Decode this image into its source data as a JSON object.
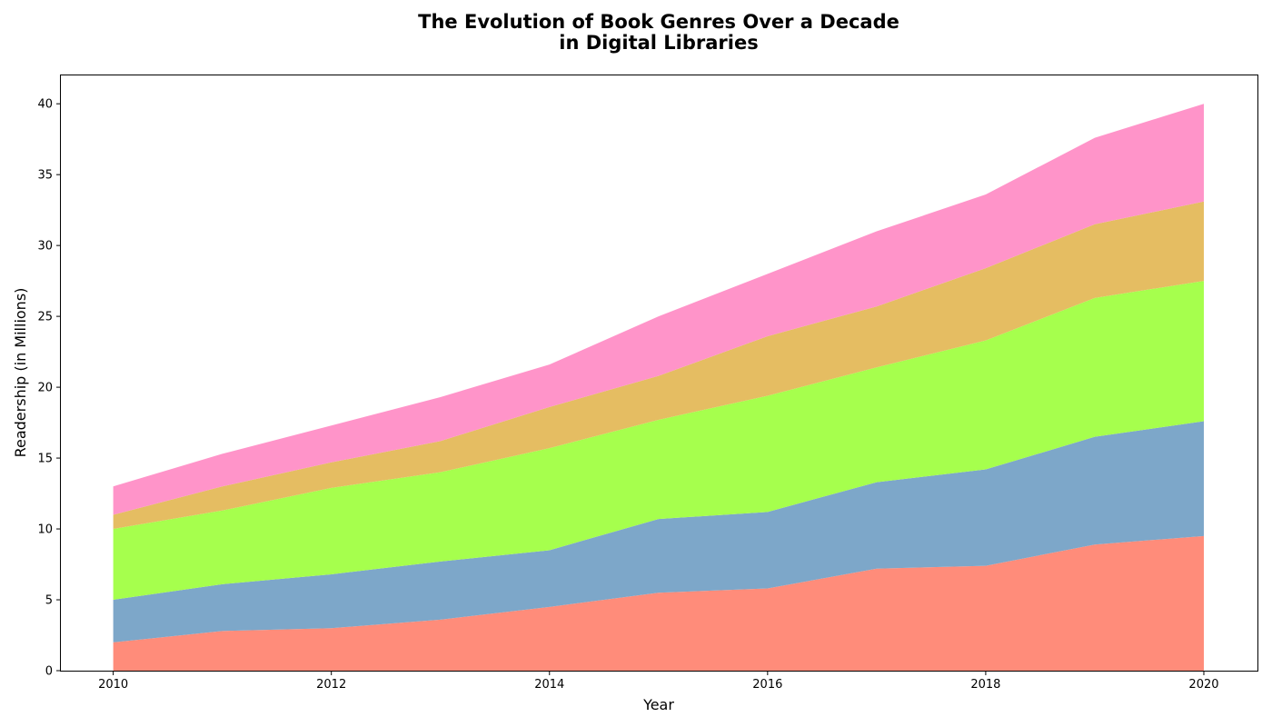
{
  "chart_data": {
    "type": "area",
    "stacked": true,
    "title_lines": [
      "The Evolution of Book Genres Over a Decade",
      "in Digital Libraries"
    ],
    "xlabel": "Year",
    "ylabel": "Readership (in Millions)",
    "x": [
      2010,
      2011,
      2012,
      2013,
      2014,
      2015,
      2016,
      2017,
      2018,
      2019,
      2020
    ],
    "xlim": [
      2009.52,
      2020.5
    ],
    "ylim": [
      0,
      42
    ],
    "x_ticks": [
      2010,
      2012,
      2014,
      2016,
      2018,
      2020
    ],
    "y_ticks": [
      0,
      5,
      10,
      15,
      20,
      25,
      30,
      35,
      40
    ],
    "x_tick_labels": [
      "2010",
      "2012",
      "2014",
      "2016",
      "2018",
      "2020"
    ],
    "y_tick_labels": [
      "0",
      "5",
      "10",
      "15",
      "20",
      "25",
      "30",
      "35",
      "40"
    ],
    "grid": false,
    "legend": "none",
    "series": [
      {
        "values": [
          2.0,
          2.8,
          3.0,
          3.6,
          4.5,
          5.5,
          5.8,
          7.2,
          7.4,
          8.9,
          9.5
        ],
        "color": "#ff8c7a"
      },
      {
        "values": [
          3.0,
          3.3,
          3.8,
          4.1,
          4.0,
          5.2,
          5.4,
          6.1,
          6.8,
          7.6,
          8.1
        ],
        "color": "#7da7c9"
      },
      {
        "values": [
          5.0,
          5.2,
          6.1,
          6.3,
          7.2,
          7.0,
          8.2,
          8.1,
          9.1,
          9.8,
          9.9
        ],
        "color": "#a6ff4d"
      },
      {
        "values": [
          1.0,
          1.7,
          1.8,
          2.2,
          2.9,
          3.1,
          4.2,
          4.3,
          5.1,
          5.2,
          5.6
        ],
        "color": "#e5bd62"
      },
      {
        "values": [
          2.0,
          2.3,
          2.6,
          3.1,
          3.0,
          4.2,
          4.4,
          5.3,
          5.2,
          6.1,
          6.9
        ],
        "color": "#ff94c9"
      }
    ]
  }
}
